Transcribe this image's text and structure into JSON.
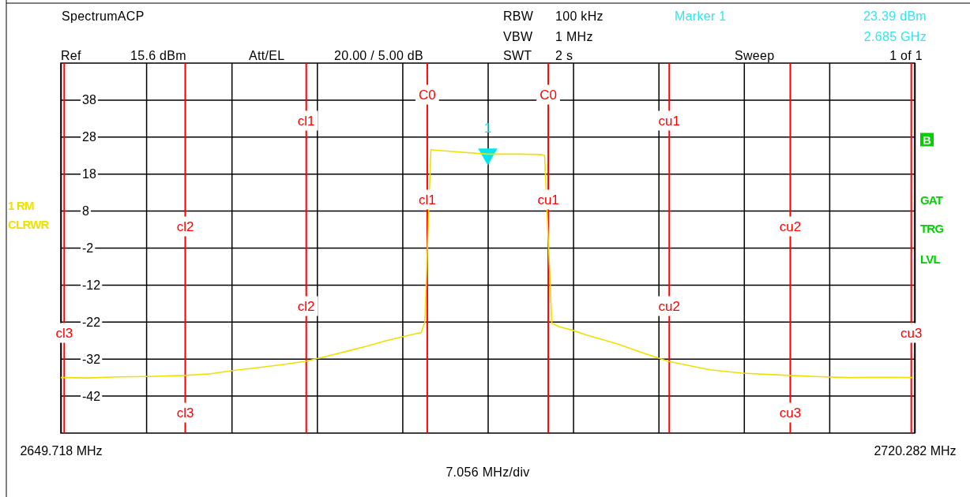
{
  "chart_data": {
    "type": "line",
    "xlim": [
      2649.718,
      2720.282
    ],
    "xticks": [
      {
        "value": 2649.718,
        "label": "2649.718 MHz"
      },
      {
        "value": 2656.774,
        "label": null
      },
      {
        "value": 2663.831,
        "label": null
      },
      {
        "value": 2670.887,
        "label": null
      },
      {
        "value": 2677.944,
        "label": null
      },
      {
        "value": 2685,
        "label": null
      },
      {
        "value": 2692.056,
        "label": null
      },
      {
        "value": 2699.113,
        "label": null
      },
      {
        "value": 2706.169,
        "label": null
      },
      {
        "value": 2713.226,
        "label": null
      },
      {
        "value": 2720.282,
        "label": "2720.282 MHz"
      }
    ],
    "ylim": [
      -52,
      48
    ],
    "yticks": [
      38,
      28,
      18,
      8,
      -2,
      -12,
      -22,
      -32,
      -42
    ],
    "grid": true,
    "series": [
      {
        "color": "#f0e000",
        "x": [
          2649.72,
          2652.0,
          2654.36,
          2657.0,
          2659.96,
          2662.0,
          2663.91,
          2666.0,
          2668.0,
          2669.95,
          2672.0,
          2673.45,
          2675.0,
          2676.63,
          2678.54,
          2679.5,
          2679.8,
          2680.3,
          2680.6,
          2682.5,
          2685,
          2687.5,
          2689.4,
          2689.7,
          2690.3,
          2690.9,
          2692.0,
          2693.18,
          2695.72,
          2698.0,
          2699.92,
          2702.0,
          2703.36,
          2706.0,
          2709.91,
          2712.0,
          2714.81,
          2718.0,
          2720.1
        ],
        "values": [
          -37.0,
          -37.1,
          -36.8,
          -36.7,
          -36.4,
          -36.0,
          -35.1,
          -34.3,
          -33.5,
          -32.6,
          -31.0,
          -29.8,
          -28.5,
          -27.0,
          -25.5,
          -24.8,
          -22.0,
          24.6,
          24.5,
          24.0,
          23.4,
          23.4,
          23.3,
          23.0,
          -22.3,
          -23.2,
          -24.2,
          -25.5,
          -27.9,
          -30.5,
          -32.6,
          -34.0,
          -34.9,
          -35.8,
          -36.4,
          -36.7,
          -37.0,
          -36.9,
          -37.0
        ]
      },
      {
        "type": "scatter",
        "color": "#00e5ee",
        "marker": "triangle",
        "x": [
          2685
        ],
        "values": [
          23.4
        ]
      }
    ],
    "ref_lines": [
      {
        "axis": "x",
        "value": 2650,
        "label": "cl3",
        "color": "#ff0000"
      },
      {
        "axis": "x",
        "value": 2660,
        "label": "cl2",
        "color": "#ff0000"
      },
      {
        "axis": "x",
        "value": 2670,
        "label": "cl1",
        "color": "#ff0000"
      },
      {
        "axis": "x",
        "value": 2680,
        "label": "C0",
        "color": "#ff0000"
      },
      {
        "axis": "x",
        "value": 2690,
        "label": "C0",
        "color": "#ff0000"
      },
      {
        "axis": "x",
        "value": 2700,
        "label": "cu1",
        "color": "#ff0000"
      },
      {
        "axis": "x",
        "value": 2710,
        "label": "cu2",
        "color": "#ff0000"
      },
      {
        "axis": "x",
        "value": 2720,
        "label": "cu3",
        "color": "#ff0000"
      }
    ],
    "annotations": [
      "SpectrumACP",
      "RBW",
      "100 kHz",
      "Marker  1",
      "23.39 dBm",
      "VBW",
      "1 MHz",
      "2.685 GHz",
      "Ref",
      "15.6 dBm",
      "Att/EL",
      "20.00 / 5.00 dB",
      "SWT",
      "2 s",
      "Sweep",
      "1 of 1",
      "1 RM",
      "CLRWR",
      "B",
      "GAT",
      "TRG",
      "LVL",
      "7.056 MHz/div",
      "cl3",
      "cl2",
      "cl1",
      "cu1",
      "cu2",
      "cu3",
      {
        "text": "1",
        "x": 2685,
        "y": 23.4
      }
    ]
  }
}
